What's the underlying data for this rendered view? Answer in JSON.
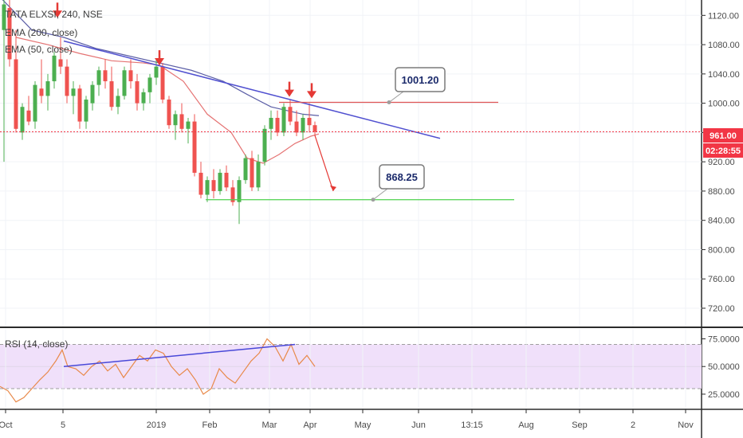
{
  "chart_data": [
    {
      "type": "candlestick",
      "title": "TATA ELXSI, 240, NSE",
      "legend": [
        "EMA (200, close)",
        "EMA (50, close)"
      ],
      "y_axis_ticks": [
        "1120.00",
        "1080.00",
        "1040.00",
        "1000.00",
        "960.00",
        "920.00",
        "880.00",
        "840.00",
        "800.00",
        "760.00",
        "720.00"
      ],
      "y_tick_values": [
        1120,
        1080,
        1040,
        1000,
        960,
        920,
        880,
        840,
        800,
        760,
        720
      ],
      "ylim": [
        695,
        1141
      ],
      "x_axis_labels": [
        "Oct",
        "5",
        "2019",
        "Feb",
        "Mar",
        "Apr",
        "May",
        "Jun",
        "13:15",
        "Aug",
        "Sep",
        "2",
        "Nov"
      ],
      "price_tag": "961.00",
      "countdown_tag": "02:28:55",
      "colors": {
        "up": "#26a69a",
        "up_bright": "#4caf50",
        "down": "#ef5350",
        "ema200": "#5b5ea6",
        "ema50": "#e57373",
        "trendline": "#5050d0",
        "resistance": "#e05555",
        "support": "#4cd04c",
        "arrow": "#e53935",
        "price_tag": "#f23645",
        "countdown_tag": "#f23645"
      },
      "resistance_level": 1001.2,
      "support_level": 868.25,
      "current_price": 961.0,
      "annotations": [
        {
          "text": "1001.20",
          "kind": "callout",
          "price": 1001.2
        },
        {
          "text": "868.25",
          "kind": "callout",
          "price": 868.25
        }
      ],
      "ema200_points": [
        [
          0,
          1145
        ],
        [
          40,
          1100
        ],
        [
          80,
          1090
        ],
        [
          120,
          1075
        ],
        [
          160,
          1065
        ],
        [
          200,
          1055
        ],
        [
          240,
          1045
        ],
        [
          280,
          1030
        ],
        [
          310,
          1012
        ],
        [
          340,
          995
        ],
        [
          380,
          985
        ],
        [
          400,
          983
        ]
      ],
      "ema50_points": [
        [
          20,
          1090
        ],
        [
          60,
          1080
        ],
        [
          100,
          1068
        ],
        [
          140,
          1058
        ],
        [
          180,
          1055
        ],
        [
          200,
          1052
        ],
        [
          230,
          1030
        ],
        [
          260,
          985
        ],
        [
          290,
          960
        ],
        [
          310,
          925
        ],
        [
          330,
          918
        ],
        [
          350,
          930
        ],
        [
          370,
          945
        ],
        [
          390,
          955
        ],
        [
          400,
          958
        ]
      ],
      "trendline_points": [
        [
          80,
          1085
        ],
        [
          552,
          952
        ]
      ],
      "candles_approx": [
        [
          5,
          1100,
          1141,
          920,
          1135
        ],
        [
          12,
          1130,
          1141,
          1050,
          1060
        ],
        [
          20,
          1060,
          1100,
          960,
          965
        ],
        [
          28,
          960,
          1000,
          950,
          995
        ],
        [
          36,
          990,
          1010,
          970,
          975
        ],
        [
          44,
          975,
          1030,
          965,
          1025
        ],
        [
          52,
          1020,
          1060,
          1000,
          1010
        ],
        [
          60,
          1010,
          1040,
          990,
          1030
        ],
        [
          68,
          1030,
          1070,
          1020,
          1065
        ],
        [
          76,
          1060,
          1090,
          1040,
          1050
        ],
        [
          84,
          1050,
          1060,
          1000,
          1010
        ],
        [
          92,
          1010,
          1030,
          985,
          1020
        ],
        [
          100,
          1020,
          1025,
          965,
          975
        ],
        [
          108,
          975,
          1010,
          965,
          1005
        ],
        [
          116,
          1000,
          1030,
          990,
          1025
        ],
        [
          124,
          1025,
          1050,
          1010,
          1045
        ],
        [
          132,
          1045,
          1060,
          1020,
          1030
        ],
        [
          140,
          1030,
          1050,
          990,
          995
        ],
        [
          148,
          995,
          1020,
          985,
          1010
        ],
        [
          156,
          1010,
          1050,
          1005,
          1045
        ],
        [
          164,
          1045,
          1060,
          1020,
          1030
        ],
        [
          172,
          1030,
          1040,
          990,
          1000
        ],
        [
          180,
          1000,
          1020,
          990,
          1015
        ],
        [
          188,
          1015,
          1040,
          1000,
          1035
        ],
        [
          196,
          1035,
          1060,
          1025,
          1050
        ],
        [
          204,
          1050,
          1055,
          1000,
          1005
        ],
        [
          212,
          1005,
          1010,
          965,
          970
        ],
        [
          220,
          970,
          990,
          950,
          985
        ],
        [
          228,
          985,
          1000,
          960,
          965
        ],
        [
          236,
          965,
          980,
          945,
          975
        ],
        [
          244,
          975,
          985,
          900,
          905
        ],
        [
          252,
          905,
          920,
          870,
          875
        ],
        [
          260,
          875,
          900,
          865,
          895
        ],
        [
          268,
          895,
          910,
          870,
          880
        ],
        [
          276,
          880,
          910,
          875,
          905
        ],
        [
          284,
          905,
          915,
          880,
          885
        ],
        [
          292,
          885,
          895,
          860,
          865
        ],
        [
          300,
          865,
          900,
          835,
          895
        ],
        [
          308,
          895,
          930,
          890,
          925
        ],
        [
          316,
          925,
          935,
          880,
          885
        ],
        [
          324,
          885,
          930,
          880,
          920
        ],
        [
          332,
          920,
          970,
          915,
          965
        ],
        [
          340,
          965,
          990,
          950,
          980
        ],
        [
          348,
          980,
          990,
          955,
          960
        ],
        [
          356,
          960,
          1000,
          955,
          995
        ],
        [
          364,
          995,
          1005,
          970,
          975
        ],
        [
          372,
          975,
          990,
          955,
          960
        ],
        [
          380,
          960,
          985,
          950,
          980
        ],
        [
          388,
          980,
          1000,
          960,
          970
        ],
        [
          395,
          970,
          975,
          955,
          961
        ]
      ]
    },
    {
      "type": "line",
      "title": "RSI (14, close)",
      "y_axis_ticks": [
        "75.0000",
        "50.0000",
        "25.0000"
      ],
      "y_tick_values": [
        75,
        50,
        25
      ],
      "ylim": [
        12,
        84
      ],
      "overbought": 70,
      "oversold": 30,
      "colors": {
        "rsi": "#e8894a",
        "band": "#f0e0fa",
        "bounds": "#9e9e9e",
        "trendline": "#4848d8"
      },
      "rsi_points": [
        [
          0,
          32
        ],
        [
          10,
          28
        ],
        [
          20,
          18
        ],
        [
          30,
          22
        ],
        [
          40,
          30
        ],
        [
          50,
          38
        ],
        [
          60,
          45
        ],
        [
          70,
          55
        ],
        [
          78,
          65
        ],
        [
          85,
          50
        ],
        [
          95,
          48
        ],
        [
          105,
          42
        ],
        [
          115,
          50
        ],
        [
          125,
          55
        ],
        [
          135,
          46
        ],
        [
          145,
          52
        ],
        [
          155,
          40
        ],
        [
          165,
          50
        ],
        [
          175,
          60
        ],
        [
          185,
          55
        ],
        [
          195,
          65
        ],
        [
          205,
          62
        ],
        [
          215,
          50
        ],
        [
          225,
          42
        ],
        [
          235,
          48
        ],
        [
          245,
          38
        ],
        [
          255,
          25
        ],
        [
          265,
          30
        ],
        [
          275,
          48
        ],
        [
          285,
          40
        ],
        [
          295,
          35
        ],
        [
          305,
          45
        ],
        [
          315,
          55
        ],
        [
          325,
          62
        ],
        [
          335,
          75
        ],
        [
          345,
          68
        ],
        [
          355,
          55
        ],
        [
          365,
          70
        ],
        [
          375,
          52
        ],
        [
          385,
          60
        ],
        [
          395,
          50
        ]
      ],
      "trendline_points": [
        [
          80,
          50
        ],
        [
          370,
          70
        ]
      ]
    }
  ]
}
